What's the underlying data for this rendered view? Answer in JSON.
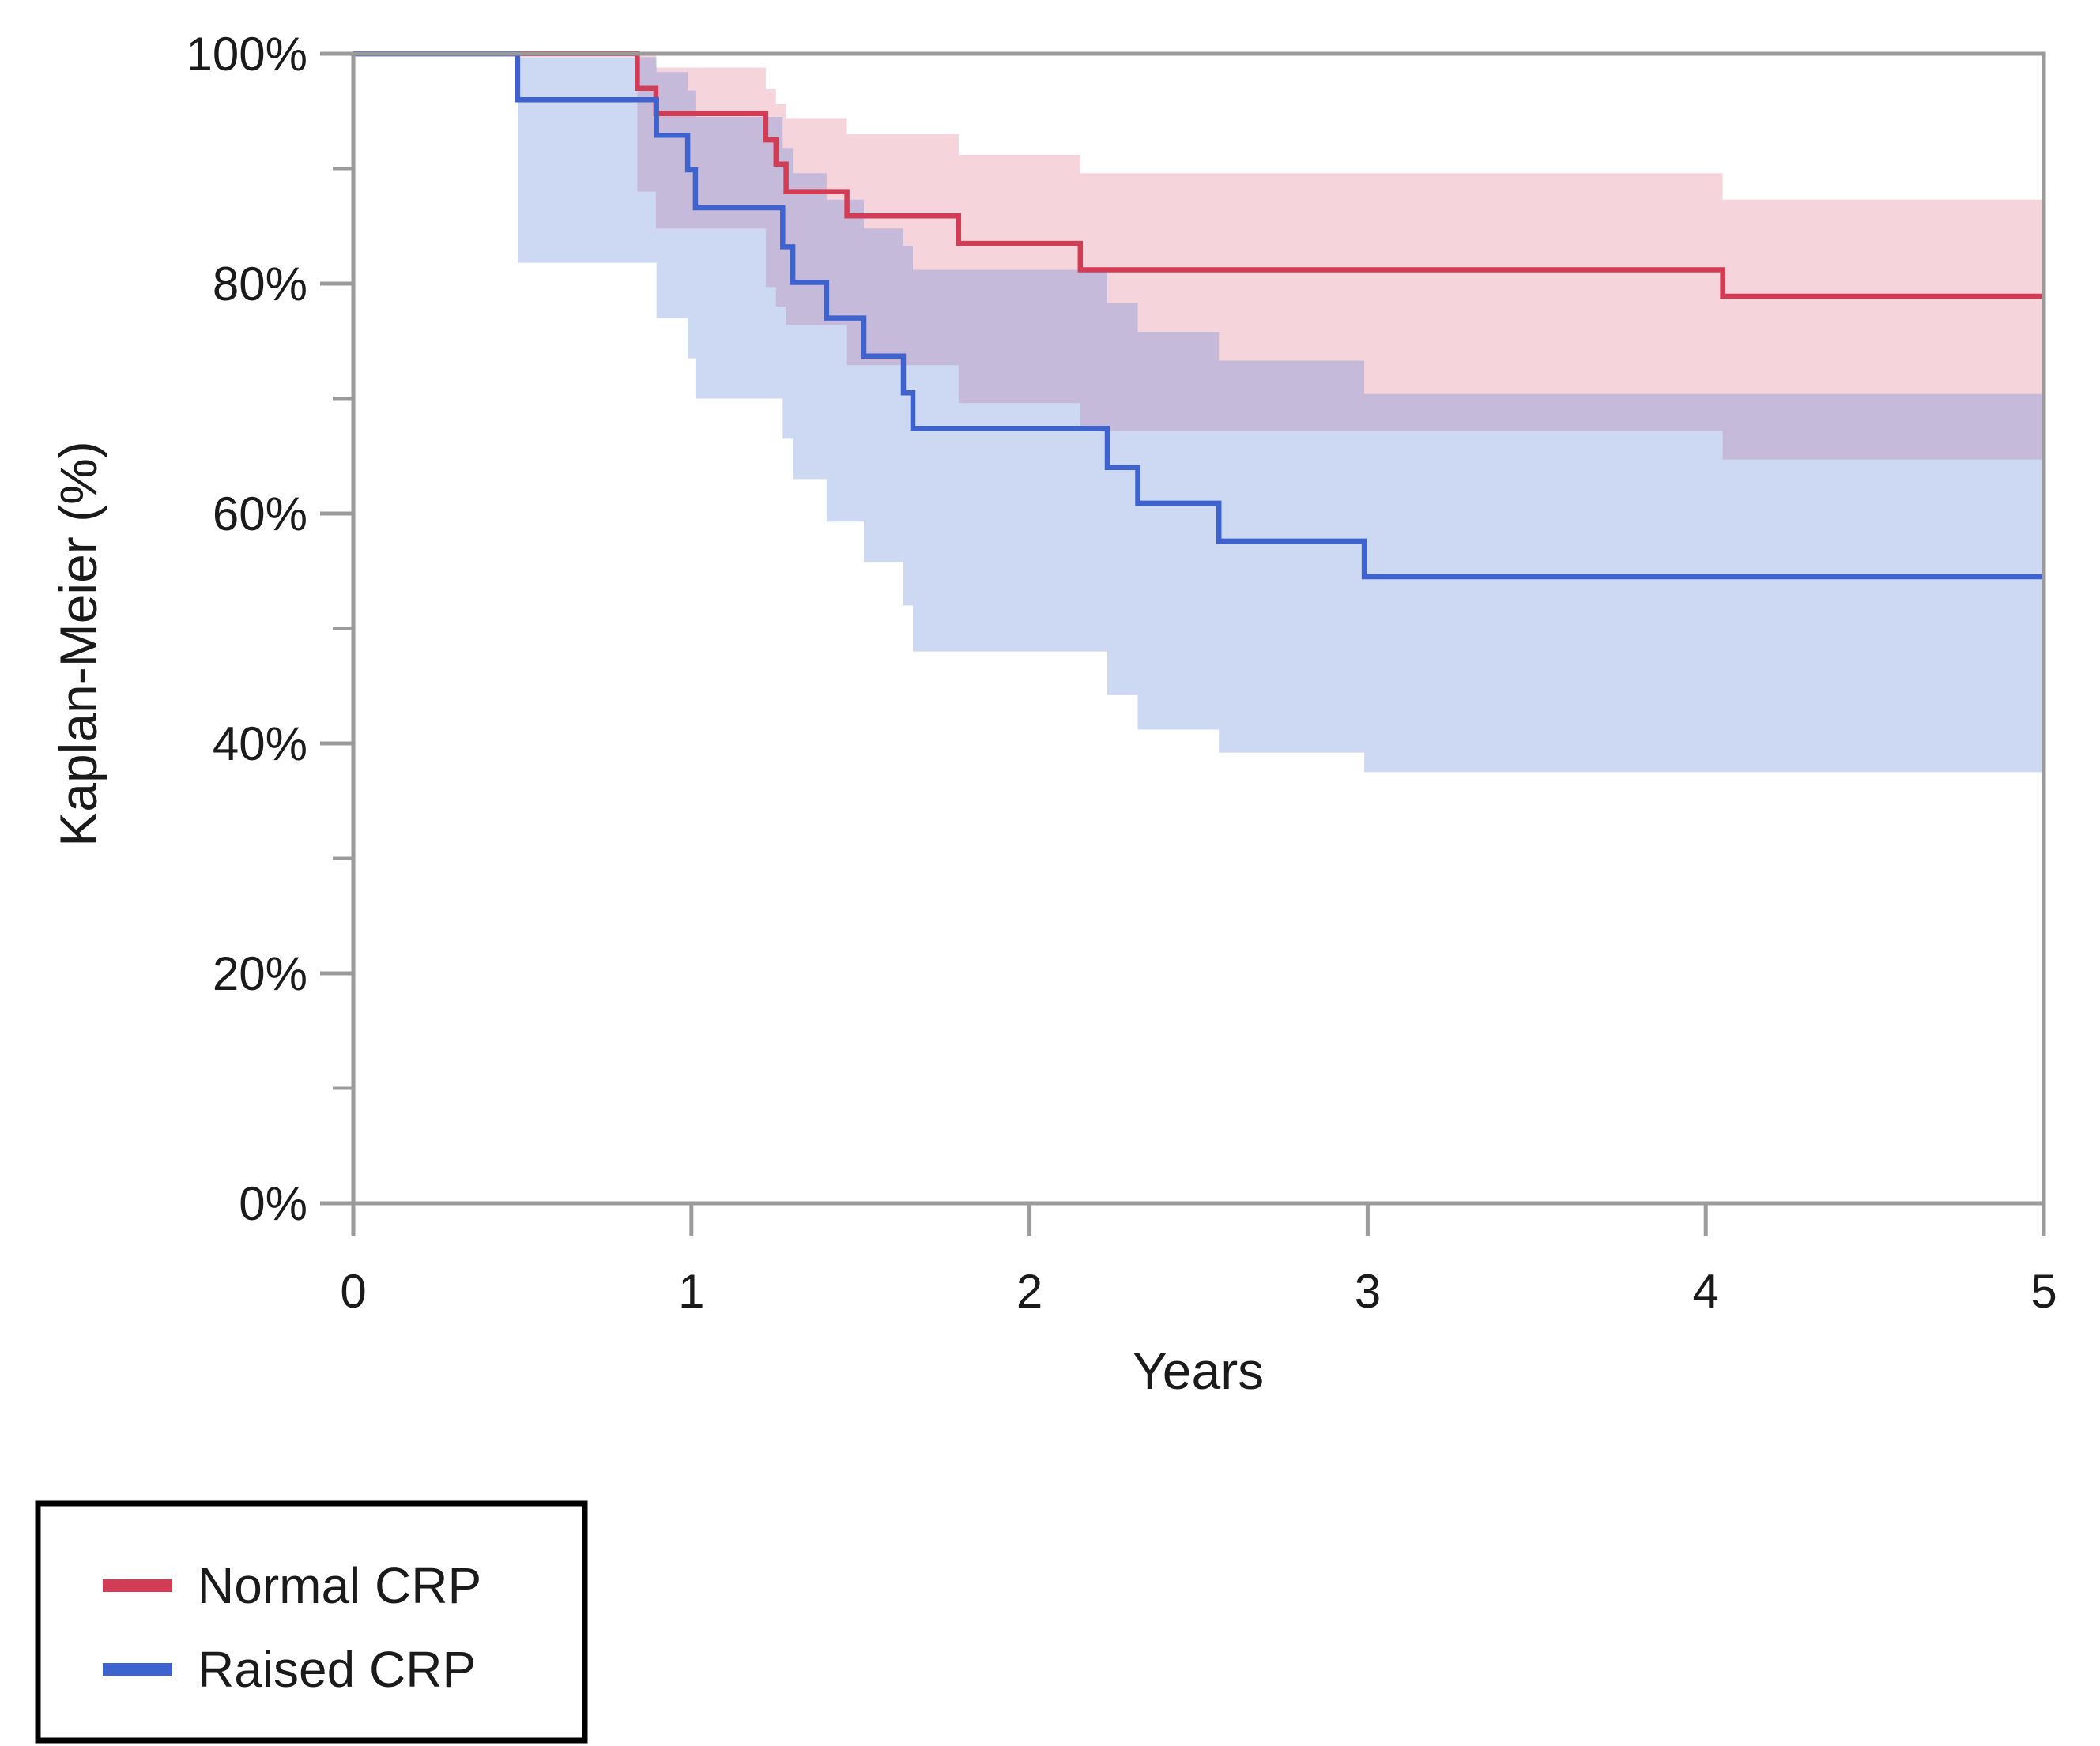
{
  "chart_data": {
    "type": "line",
    "subtype": "kaplan-meier-step-curves-with-confidence-bands",
    "title": "",
    "xlabel": "Years",
    "ylabel": "Kaplan-Meier (%)",
    "xlim": [
      0,
      5
    ],
    "ylim": [
      0,
      100
    ],
    "grid": false,
    "legend_position": "bottom-left-outside",
    "x_ticks": [
      {
        "value": 0,
        "label": "0"
      },
      {
        "value": 1,
        "label": "1"
      },
      {
        "value": 2,
        "label": "2"
      },
      {
        "value": 3,
        "label": "3"
      },
      {
        "value": 4,
        "label": "4"
      },
      {
        "value": 5,
        "label": "5"
      }
    ],
    "y_ticks": [
      {
        "value": 0,
        "label": "0%"
      },
      {
        "value": 20,
        "label": "20%"
      },
      {
        "value": 40,
        "label": "40%"
      },
      {
        "value": 60,
        "label": "60%"
      },
      {
        "value": 80,
        "label": "80%"
      },
      {
        "value": 100,
        "label": "100%"
      }
    ],
    "y_minor_ticks": [
      10,
      30,
      50,
      70,
      90
    ],
    "series": [
      {
        "name": "Normal CRP",
        "line_color": "#d23c55",
        "fill_color": "rgba(222,112,138,0.30)",
        "steps": [
          [
            0,
            100
          ],
          [
            0.84,
            97.0
          ],
          [
            0.895,
            94.8
          ],
          [
            1.22,
            92.5
          ],
          [
            1.25,
            90.4
          ],
          [
            1.28,
            88.0
          ],
          [
            1.46,
            85.9
          ],
          [
            1.79,
            83.5
          ],
          [
            2.15,
            81.2
          ],
          [
            4.05,
            78.9
          ],
          [
            5,
            78.9
          ]
        ],
        "ci_upper": [
          [
            0.84,
            99.9
          ],
          [
            0.895,
            98.8
          ],
          [
            1.22,
            96.9
          ],
          [
            1.25,
            95.6
          ],
          [
            1.28,
            94.4
          ],
          [
            1.46,
            93.0
          ],
          [
            1.79,
            91.2
          ],
          [
            2.15,
            89.6
          ],
          [
            4.05,
            87.3
          ],
          [
            5,
            87.3
          ]
        ],
        "ci_lower": [
          [
            0.84,
            88.0
          ],
          [
            0.895,
            84.8
          ],
          [
            1.22,
            79.7
          ],
          [
            1.25,
            78.0
          ],
          [
            1.28,
            76.4
          ],
          [
            1.46,
            72.9
          ],
          [
            1.79,
            69.6
          ],
          [
            2.15,
            67.2
          ],
          [
            4.05,
            64.7
          ],
          [
            5,
            64.7
          ]
        ]
      },
      {
        "name": "Raised CRP",
        "line_color": "#3e63cf",
        "fill_color": "rgba(88,125,215,0.30)",
        "steps": [
          [
            0,
            100
          ],
          [
            0.486,
            96.0
          ],
          [
            0.897,
            92.9
          ],
          [
            0.989,
            89.9
          ],
          [
            1.012,
            86.6
          ],
          [
            1.27,
            83.2
          ],
          [
            1.3,
            80.1
          ],
          [
            1.4,
            77.0
          ],
          [
            1.51,
            73.7
          ],
          [
            1.627,
            70.5
          ],
          [
            1.655,
            67.4
          ],
          [
            2.23,
            64.0
          ],
          [
            2.32,
            60.9
          ],
          [
            2.56,
            57.6
          ],
          [
            2.99,
            54.5
          ],
          [
            5,
            54.5
          ]
        ],
        "ci_upper": [
          [
            0.486,
            99.7
          ],
          [
            0.897,
            98.4
          ],
          [
            0.989,
            96.8
          ],
          [
            1.012,
            94.5
          ],
          [
            1.27,
            91.8
          ],
          [
            1.3,
            89.6
          ],
          [
            1.4,
            87.3
          ],
          [
            1.51,
            84.8
          ],
          [
            1.627,
            83.3
          ],
          [
            1.655,
            81.2
          ],
          [
            2.23,
            78.3
          ],
          [
            2.32,
            75.8
          ],
          [
            2.56,
            73.3
          ],
          [
            2.99,
            70.4
          ],
          [
            5,
            70.4
          ]
        ],
        "ci_lower": [
          [
            0.486,
            81.8
          ],
          [
            0.897,
            77.0
          ],
          [
            0.989,
            73.5
          ],
          [
            1.012,
            70.0
          ],
          [
            1.27,
            66.5
          ],
          [
            1.3,
            63.0
          ],
          [
            1.4,
            59.3
          ],
          [
            1.51,
            55.8
          ],
          [
            1.627,
            52.0
          ],
          [
            1.655,
            48.0
          ],
          [
            2.23,
            44.2
          ],
          [
            2.32,
            41.2
          ],
          [
            2.56,
            39.2
          ],
          [
            2.99,
            37.5
          ],
          [
            5,
            37.5
          ]
        ]
      }
    ],
    "legend": [
      {
        "label": "Normal CRP",
        "color": "#d23c55"
      },
      {
        "label": "Raised CRP",
        "color": "#3e63cf"
      }
    ],
    "colors": {
      "axis": "#9b9b9b",
      "text": "#1a1a1a",
      "legend_border": "#000000",
      "background": "#ffffff"
    }
  }
}
